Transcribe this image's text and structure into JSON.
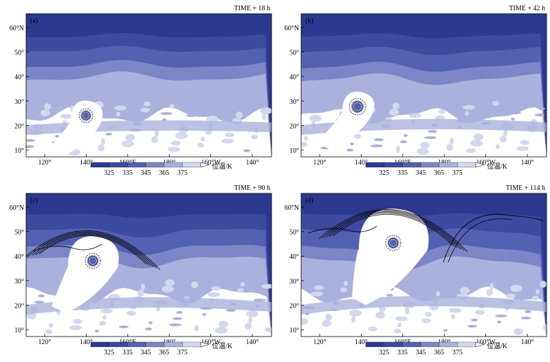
{
  "figure": {
    "colorbar": {
      "unit_label": "位温/K",
      "ticks": [
        "325",
        "335",
        "345",
        "365",
        "375"
      ],
      "colors": [
        "#2b3990",
        "#3c4aa0",
        "#5361b2",
        "#7a86c6",
        "#a9b1dc",
        "#d4d8ee",
        "#ffffff"
      ]
    },
    "x_ticks": [
      "120°",
      "140°",
      "160°E",
      "180°",
      "160°W",
      "140°"
    ],
    "y_ticks": [
      "60°N",
      "50°",
      "40°",
      "30°",
      "20°",
      "10°"
    ],
    "panels": [
      {
        "label": "(a)",
        "time": "TIME + 18 h"
      },
      {
        "label": "(b)",
        "time": "TIME + 42 h"
      },
      {
        "label": "(c)",
        "time": "TIME + 90 h"
      },
      {
        "label": "(d)",
        "time": "TIME + 114 h"
      }
    ]
  }
}
